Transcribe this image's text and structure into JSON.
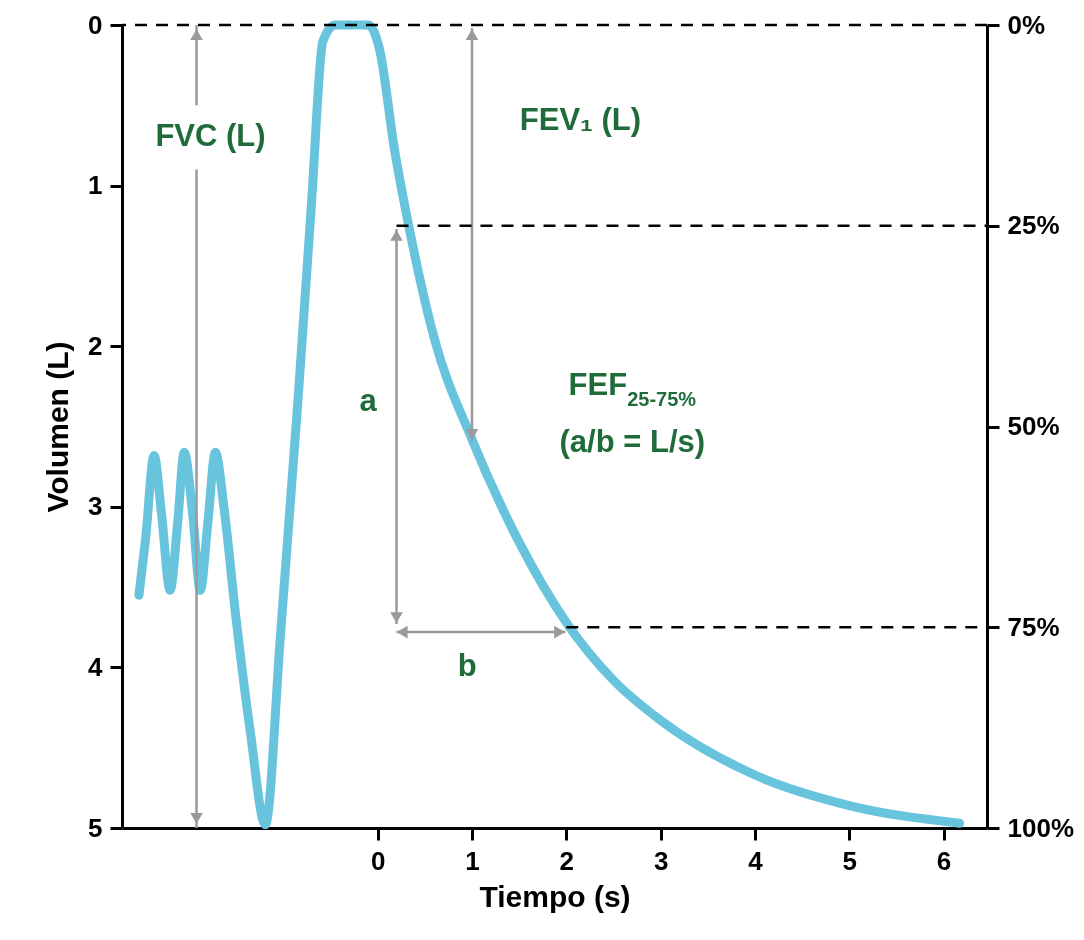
{
  "chart_data": {
    "type": "line",
    "xlabel": "Tiempo (s)",
    "ylabel": "Volumen (L)",
    "xlim": [
      -2.71,
      6.46
    ],
    "xticks": [
      0,
      1,
      2,
      3,
      4,
      5,
      6
    ],
    "ylim": [
      5,
      0
    ],
    "yticks": [
      0,
      1,
      2,
      3,
      4,
      5
    ],
    "y2lim": [
      100,
      0
    ],
    "y2ticks": [
      {
        "value": 0,
        "label": "0%"
      },
      {
        "value": 25,
        "label": "25%"
      },
      {
        "value": 50,
        "label": "50%"
      },
      {
        "value": 75,
        "label": "75%"
      },
      {
        "value": 100,
        "label": "100%"
      }
    ],
    "x": [
      -2.53,
      -2.46,
      -2.37,
      -2.29,
      -2.2,
      -2.12,
      -2.05,
      -1.96,
      -1.88,
      -1.8,
      -1.72,
      -1.63,
      -1.5,
      -1.35,
      -1.19,
      -1.03,
      -0.84,
      -0.7,
      -0.58,
      -0.45,
      -0.1,
      0.02,
      0.18,
      0.34,
      0.6,
      1.0,
      1.5,
      2.0,
      2.5,
      3.0,
      4.0,
      5.0,
      6.17
    ],
    "series": [
      {
        "color": "#68c4dd",
        "values": [
          3.55,
          3.2,
          2.68,
          3.05,
          3.52,
          3.1,
          2.66,
          3.05,
          3.52,
          3.1,
          2.66,
          3.0,
          3.7,
          4.4,
          4.98,
          3.8,
          2.3,
          1.1,
          0.1,
          0,
          0,
          0.15,
          0.78,
          1.28,
          1.95,
          2.58,
          3.22,
          3.72,
          4.08,
          4.33,
          4.67,
          4.86,
          4.97
        ]
      }
    ],
    "line_style": "solid",
    "ref_lines": [
      {
        "axis": "x",
        "value": -1.92,
        "label": "FVC (L)",
        "line_style": "solid",
        "color": "#9a9a9e"
      },
      {
        "axis": "y",
        "value": 0,
        "line_style": "dashed",
        "color": "#000000"
      },
      {
        "axis": "y2",
        "value": 25,
        "line_style": "dashed",
        "color": "#000000"
      },
      {
        "axis": "y2",
        "value": 75,
        "line_style": "dashed",
        "color": "#000000"
      }
    ],
    "annotations": [
      "FEV₁ (L)",
      "a",
      "b",
      "FEF$_{25-75%}$",
      "(a/b = L/s)"
    ]
  }
}
